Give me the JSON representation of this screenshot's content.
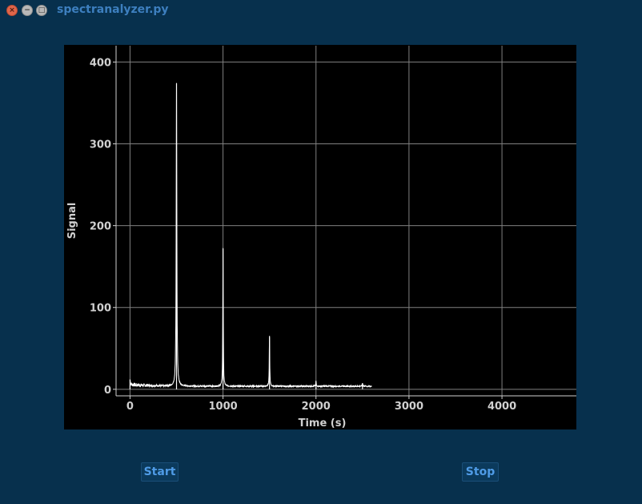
{
  "window": {
    "title": "spectranalyzer.py",
    "close_glyph": "×",
    "min_glyph": "−",
    "max_glyph": "□"
  },
  "buttons": {
    "start_label": "Start",
    "stop_label": "Stop"
  },
  "colors": {
    "background": "#07304d",
    "plot_bg": "#000000",
    "trace": "#ffffff",
    "grid": "#808080",
    "button_text": "#4f9be6"
  },
  "chart_data": {
    "type": "line",
    "title": "",
    "xlabel": "Time (s)",
    "ylabel": "Signal",
    "xlim": [
      -150,
      4800
    ],
    "ylim": [
      -8,
      420
    ],
    "xticks": [
      0,
      1000,
      2000,
      3000,
      4000
    ],
    "yticks": [
      0,
      100,
      200,
      300,
      400
    ],
    "grid": true,
    "legend": "none",
    "baseline": 3,
    "peaks": [
      {
        "x": 0,
        "y": 12
      },
      {
        "x": 500,
        "y": 374
      },
      {
        "x": 1000,
        "y": 172
      },
      {
        "x": 1500,
        "y": 64
      },
      {
        "x": 2000,
        "y": 9
      },
      {
        "x": 2500,
        "y": 7
      }
    ],
    "x_end": 2600
  }
}
